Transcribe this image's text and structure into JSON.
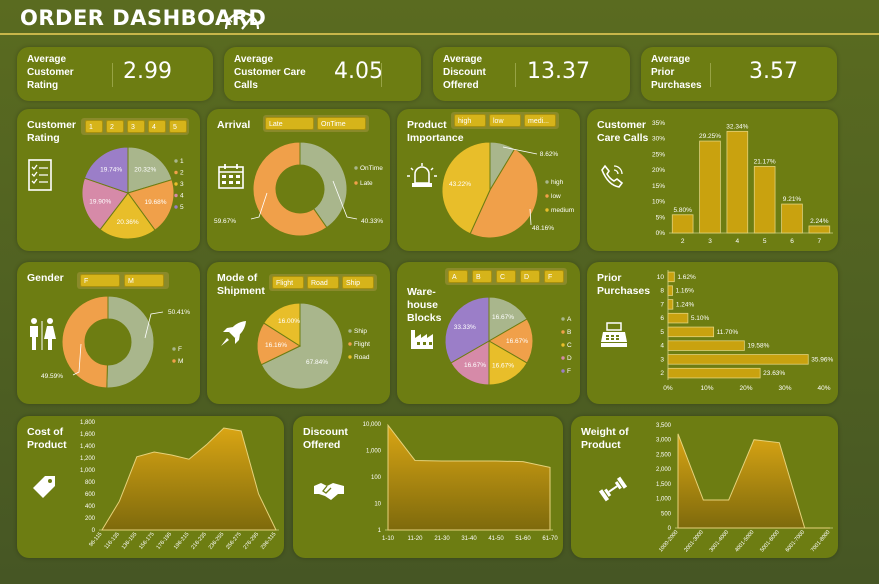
{
  "dashboard": {
    "title": "ORDER DASHBOARD"
  },
  "kpis": [
    {
      "label": [
        "Average",
        "Customer",
        "Rating"
      ],
      "value": "2.99"
    },
    {
      "label": [
        "Average",
        "Customer Care",
        "Calls"
      ],
      "value": "4.05"
    },
    {
      "label": [
        "Average",
        "Discount",
        "Offered"
      ],
      "value": "13.37"
    },
    {
      "label": [
        "Average",
        "Prior",
        "Purchases"
      ],
      "value": "3.57"
    }
  ],
  "panels": {
    "rating": {
      "title": [
        "Customer",
        "Rating"
      ],
      "chips": [
        "1",
        "2",
        "3",
        "4",
        "5"
      ]
    },
    "arrival": {
      "title": [
        "Arrival"
      ],
      "chips": [
        "Late",
        "OnTime"
      ]
    },
    "importance": {
      "title": [
        "Product",
        "Importance"
      ],
      "chips": [
        "high",
        "low",
        "medi..."
      ]
    },
    "calls": {
      "title": [
        "Customer",
        "Care Calls"
      ]
    },
    "gender": {
      "title": [
        "Gender"
      ],
      "chips": [
        "F",
        "M"
      ]
    },
    "shipment": {
      "title": [
        "Mode of",
        "Shipment"
      ],
      "chips": [
        "Flight",
        "Road",
        "Ship"
      ]
    },
    "warehouse": {
      "title": [
        "Ware-",
        "house",
        "Blocks"
      ],
      "chips": [
        "A",
        "B",
        "C",
        "D",
        "F"
      ]
    },
    "prior": {
      "title": [
        "Prior",
        "Purchases"
      ]
    },
    "cost": {
      "title": [
        "Cost of",
        "Product"
      ]
    },
    "discount": {
      "title": [
        "Discount",
        "Offered"
      ]
    },
    "weight": {
      "title": [
        "Weight of",
        "Product"
      ]
    }
  },
  "colors": {
    "green": "#a9b68c",
    "orange": "#f0a04a",
    "yellow": "#e8be2a",
    "pink": "#d68aa8",
    "purple": "#9b7ec8",
    "panel": "#6d7d12",
    "gold": "#c9a20f"
  },
  "chart_data": [
    {
      "id": "rating",
      "type": "pie",
      "categories": [
        "1",
        "2",
        "3",
        "4",
        "5"
      ],
      "values": [
        20.32,
        19.68,
        20.36,
        19.9,
        19.74
      ],
      "labels": [
        "20.32%",
        "19.68%",
        "20.36%",
        "19.90%",
        "19.74%"
      ]
    },
    {
      "id": "arrival",
      "type": "pie",
      "donut": true,
      "categories": [
        "OnTime",
        "Late"
      ],
      "values": [
        40.33,
        59.67
      ],
      "labels": [
        "40.33%",
        "59.67%"
      ]
    },
    {
      "id": "importance",
      "type": "pie",
      "categories": [
        "high",
        "low",
        "medium"
      ],
      "values": [
        8.62,
        48.16,
        43.22
      ],
      "labels": [
        "8.62%",
        "48.16%",
        "43.22%"
      ]
    },
    {
      "id": "calls",
      "type": "bar",
      "categories": [
        "2",
        "3",
        "4",
        "5",
        "6",
        "7"
      ],
      "values": [
        5.8,
        29.25,
        32.34,
        21.17,
        9.21,
        2.24
      ],
      "labels": [
        "5.80%",
        "29.25%",
        "32.34%",
        "21.17%",
        "9.21%",
        "2.24%"
      ],
      "yticks": [
        "0%",
        "5%",
        "10%",
        "15%",
        "20%",
        "25%",
        "30%",
        "35%"
      ],
      "ylim": [
        0,
        35
      ]
    },
    {
      "id": "gender",
      "type": "pie",
      "donut": true,
      "categories": [
        "F",
        "M"
      ],
      "values": [
        50.41,
        49.59
      ],
      "labels": [
        "50.41%",
        "49.59%"
      ]
    },
    {
      "id": "shipment",
      "type": "pie",
      "categories": [
        "Ship",
        "Flight",
        "Road"
      ],
      "values": [
        67.84,
        16.16,
        16.0
      ],
      "labels": [
        "67.84%",
        "16.16%",
        "16.00%"
      ]
    },
    {
      "id": "warehouse",
      "type": "pie",
      "categories": [
        "A",
        "B",
        "C",
        "D",
        "F"
      ],
      "values": [
        16.67,
        16.67,
        16.67,
        16.67,
        33.33
      ],
      "labels": [
        "16.67%",
        "16.67%",
        "16.67%",
        "16.67%",
        "33.33%"
      ]
    },
    {
      "id": "prior",
      "type": "bar",
      "orientation": "horizontal",
      "categories": [
        "10",
        "8",
        "7",
        "6",
        "5",
        "4",
        "3",
        "2"
      ],
      "values": [
        1.62,
        1.16,
        1.24,
        5.1,
        11.7,
        19.58,
        35.96,
        23.63
      ],
      "labels": [
        "1.62%",
        "1.16%",
        "1.24%",
        "5.10%",
        "11.70%",
        "19.58%",
        "35.96%",
        "23.63%"
      ],
      "xticks": [
        "0%",
        "10%",
        "20%",
        "30%",
        "40%"
      ],
      "xlim": [
        0,
        40
      ]
    },
    {
      "id": "cost",
      "type": "area",
      "categories": [
        "96-115",
        "116-135",
        "136-155",
        "156-175",
        "176-195",
        "196-215",
        "216-235",
        "236-255",
        "256-275",
        "276-295",
        "296-315"
      ],
      "values": [
        0,
        480,
        1220,
        1300,
        1250,
        1180,
        1420,
        1700,
        1650,
        600,
        0
      ],
      "yticks": [
        "0",
        "200",
        "400",
        "600",
        "800",
        "1,000",
        "1,200",
        "1,400",
        "1,600",
        "1,800"
      ],
      "ylim": [
        0,
        1800
      ]
    },
    {
      "id": "discount",
      "type": "area",
      "log": true,
      "categories": [
        "1-10",
        "11-20",
        "21-30",
        "31-40",
        "41-50",
        "51-60",
        "61-70"
      ],
      "values": [
        9000,
        420,
        400,
        400,
        400,
        380,
        230
      ],
      "yticks": [
        "1",
        "10",
        "100",
        "1,000",
        "10,000"
      ],
      "ylim": [
        1,
        10000
      ]
    },
    {
      "id": "weight",
      "type": "area",
      "categories": [
        "1000-2000",
        "2001-3000",
        "3001-4000",
        "4001-5000",
        "5001-6000",
        "6001-7000",
        "7001-8000"
      ],
      "values": [
        3200,
        950,
        950,
        3000,
        2900,
        0,
        0
      ],
      "yticks": [
        "0",
        "500",
        "1,000",
        "1,500",
        "2,000",
        "2,500",
        "3,000",
        "3,500"
      ],
      "ylim": [
        0,
        3500
      ]
    }
  ]
}
